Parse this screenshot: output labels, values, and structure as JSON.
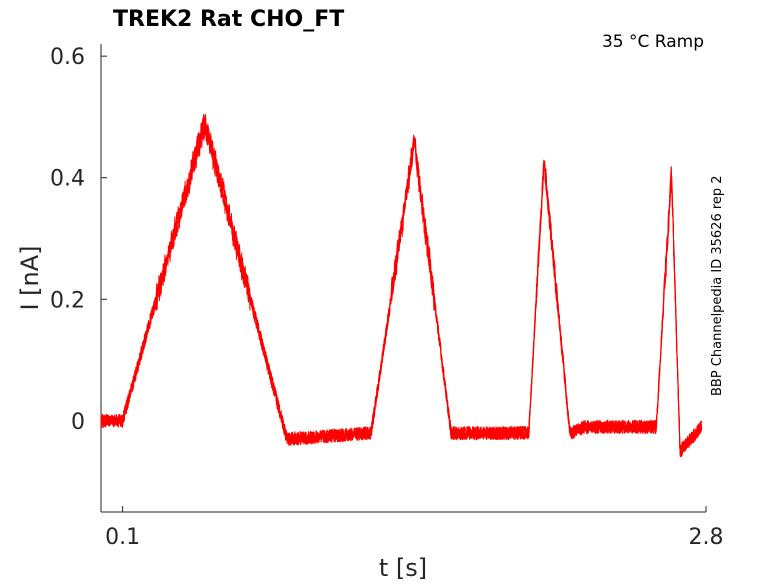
{
  "chart_data": {
    "type": "line",
    "title": "TREK2  Rat  CHO_FT",
    "annotation": "35 °C  Ramp",
    "side_label": "BBP Channelpedia ID 35626 rep 2",
    "xlabel": "t [s]",
    "ylabel": "I [nA]",
    "xlim": [
      0.0,
      2.8
    ],
    "ylim": [
      -0.15,
      0.62
    ],
    "x_ticks": [
      {
        "value": 0.1,
        "label": "0.1"
      },
      {
        "value": 2.8,
        "label": "2.8"
      }
    ],
    "y_ticks": [
      {
        "value": 0,
        "label": "0"
      },
      {
        "value": 0.2,
        "label": "0.2"
      },
      {
        "value": 0.4,
        "label": "0.4"
      },
      {
        "value": 0.6,
        "label": "0.6"
      }
    ],
    "grid": false,
    "line_color": "#ff0000",
    "series": [
      {
        "x": [
          0.0,
          0.1,
          0.48,
          0.86,
          1.25,
          1.45,
          1.62,
          1.98,
          2.05,
          2.17,
          2.24,
          2.57,
          2.64,
          2.68,
          2.78
        ],
        "y": [
          0.0,
          0.0,
          0.49,
          -0.03,
          -0.02,
          0.46,
          -0.02,
          -0.02,
          0.43,
          -0.02,
          -0.01,
          -0.01,
          0.41,
          -0.05,
          -0.01
        ]
      }
    ]
  }
}
